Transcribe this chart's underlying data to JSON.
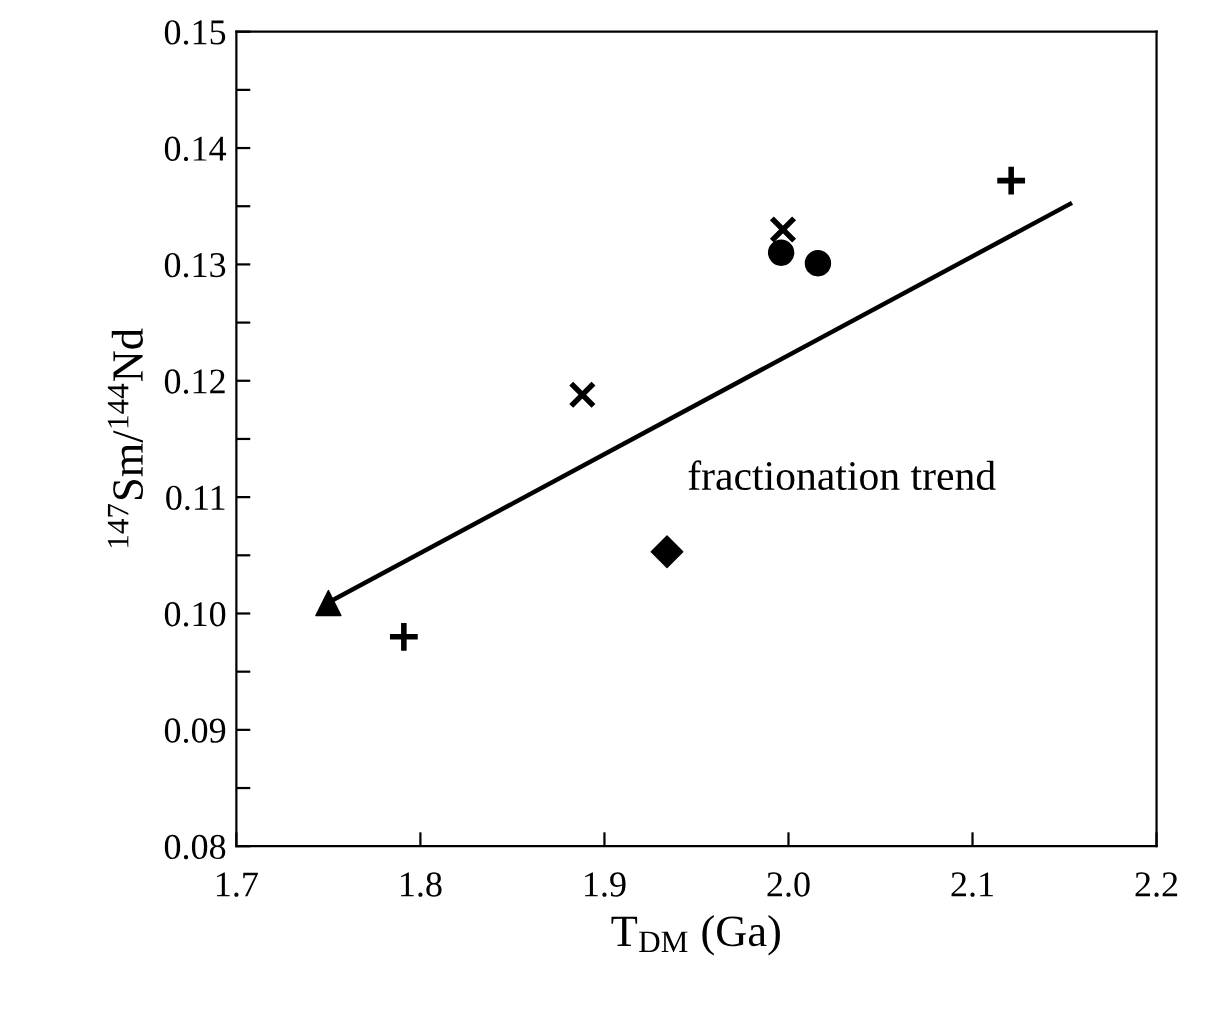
{
  "chart_data": {
    "type": "scatter",
    "xlabel": "T$_{DM}$ (Ga)",
    "ylabel": "$^{147}$Sm/$^{144}$Nd",
    "xlim": [
      1.7,
      2.2
    ],
    "ylim": [
      0.08,
      0.15
    ],
    "xticks": [
      1.7,
      1.8,
      1.9,
      {
        "value": 2.0,
        "label": "2.0"
      },
      2.1,
      2.2
    ],
    "yticks": [
      0.08,
      {
        "value": 0.085,
        "label": null
      },
      0.09,
      {
        "value": 0.095,
        "label": null
      },
      {
        "value": 0.1,
        "label": "0.10"
      },
      {
        "value": 0.105,
        "label": null
      },
      0.11,
      {
        "value": 0.115,
        "label": null
      },
      0.12,
      {
        "value": 0.125,
        "label": null
      },
      0.13,
      {
        "value": 0.135,
        "label": null
      },
      0.14,
      {
        "value": 0.145,
        "label": null
      },
      0.15
    ],
    "grid": false,
    "legend": false,
    "series": [
      {
        "type": "line",
        "color": "#000000",
        "marker": "none",
        "line_style": "solid",
        "x": [
          1.753,
          2.153
        ],
        "values": [
          0.1012,
          0.1352
        ]
      },
      {
        "color": "#000000",
        "marker": "triangle",
        "x": [
          1.75
        ],
        "values": [
          0.1009
        ]
      },
      {
        "color": "#000000",
        "marker": "plus",
        "x": [
          1.791,
          2.121
        ],
        "values": [
          0.098,
          0.1372
        ]
      },
      {
        "color": "#000000",
        "marker": "cross",
        "x": [
          1.888,
          1.997
        ],
        "values": [
          0.1188,
          0.133
        ]
      },
      {
        "color": "#000000",
        "marker": "diamond",
        "x": [
          1.934
        ],
        "values": [
          0.1053
        ]
      },
      {
        "color": "#000000",
        "marker": "circle",
        "x": [
          1.996,
          2.016
        ],
        "values": [
          0.131,
          0.1301
        ]
      }
    ],
    "annotations": [
      "fractionation trend"
    ]
  }
}
